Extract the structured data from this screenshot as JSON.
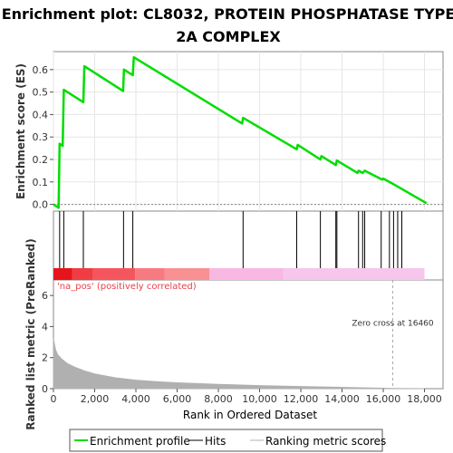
{
  "chart_data": {
    "type": "line",
    "title_line1": "Enrichment plot: CL8032, PROTEIN PHOSPHATASE TYPE",
    "title_line2": "2A COMPLEX",
    "es_panel": {
      "ylabel": "Enrichment score (ES)",
      "ylim": [
        -0.03,
        0.68
      ],
      "yticks": [
        0.0,
        0.1,
        0.2,
        0.3,
        0.4,
        0.5,
        0.6
      ],
      "ytick_labels": [
        "0.0",
        "0.1",
        "0.2",
        "0.3",
        "0.4",
        "0.5",
        "0.6"
      ],
      "series": [
        {
          "name": "Enrichment profile",
          "color": "#00dd00",
          "x": [
            0,
            250,
            300,
            450,
            500,
            1450,
            1500,
            3380,
            3420,
            3850,
            3900,
            9150,
            9200,
            11800,
            11850,
            12950,
            13000,
            13700,
            13750,
            14750,
            14800,
            15000,
            15100,
            15950,
            16000,
            16500,
            18100
          ],
          "y": [
            0.0,
            -0.015,
            0.27,
            0.26,
            0.51,
            0.455,
            0.615,
            0.505,
            0.6,
            0.575,
            0.655,
            0.36,
            0.385,
            0.245,
            0.265,
            0.2,
            0.215,
            0.175,
            0.195,
            0.14,
            0.15,
            0.14,
            0.15,
            0.11,
            0.115,
            0.09,
            0.005
          ]
        }
      ],
      "grid": true
    },
    "hits_panel": {
      "hits": [
        300,
        500,
        1450,
        3400,
        3850,
        9200,
        11800,
        12950,
        13700,
        13750,
        14800,
        15000,
        15100,
        15900,
        16300,
        16500,
        16700,
        16900
      ]
    },
    "ranking_band": {
      "colors": [
        "#e8141b",
        "#f03c42",
        "#f5555c",
        "#f77a80",
        "#f89094",
        "#f9b8e4",
        "#f7c6ec"
      ]
    },
    "metric_panel": {
      "ylabel": "Ranked list metric (PreRanked)",
      "ylim": [
        0,
        7
      ],
      "yticks": [
        0,
        2,
        4,
        6
      ],
      "ytick_labels": [
        "0",
        "2",
        "4",
        "6"
      ],
      "positive_label": "'na_pos' (positively correlated)",
      "zero_cross_label": "Zero cross at 16460",
      "zero_cross_x": 16460,
      "fill_color": "#b0b0b0",
      "x": [
        0,
        100,
        200,
        400,
        700,
        1000,
        1500,
        2000,
        3000,
        4000,
        5000,
        6000,
        8000,
        10000,
        12000,
        14000,
        16460,
        18000
      ],
      "y": [
        3.2,
        2.5,
        2.2,
        1.9,
        1.6,
        1.4,
        1.15,
        0.95,
        0.7,
        0.55,
        0.45,
        0.38,
        0.28,
        0.2,
        0.14,
        0.09,
        0.02,
        0.0
      ]
    },
    "xaxis": {
      "label": "Rank in Ordered Dataset",
      "xlim": [
        0,
        18900
      ],
      "ticks": [
        0,
        2000,
        4000,
        6000,
        8000,
        10000,
        12000,
        14000,
        16000,
        18000
      ],
      "tick_labels": [
        "0",
        "2,000",
        "4,000",
        "6,000",
        "8,000",
        "10,000",
        "12,000",
        "14,000",
        "16,000",
        "18,000"
      ]
    },
    "legend": {
      "placement": "bottom",
      "items": [
        {
          "label": "Enrichment profile",
          "color": "#00dd00"
        },
        {
          "label": "Hits",
          "color": "#000000"
        },
        {
          "label": "Ranking metric scores",
          "color": "#b0b0b0"
        }
      ]
    }
  }
}
